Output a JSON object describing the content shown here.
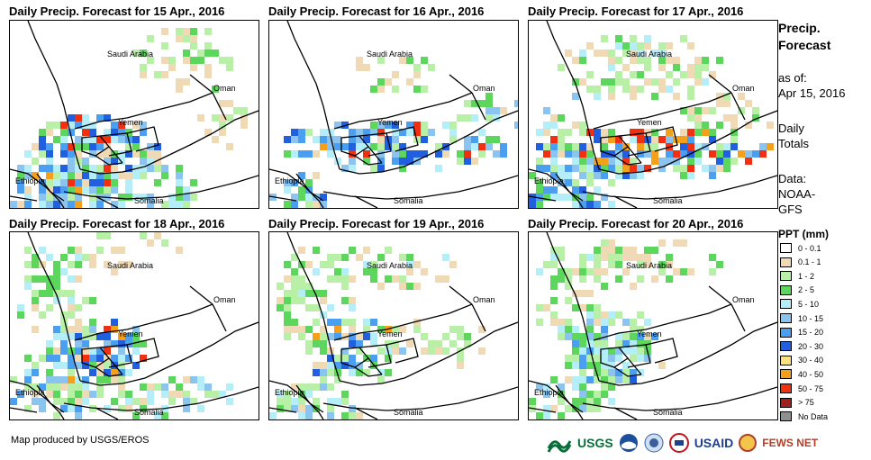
{
  "panels": [
    {
      "title": "Daily Precip. Forecast for 15 Apr., 2016"
    },
    {
      "title": "Daily Precip. Forecast for 16 Apr., 2016"
    },
    {
      "title": "Daily Precip. Forecast for 17 Apr., 2016"
    },
    {
      "title": "Daily Precip. Forecast for 18 Apr., 2016"
    },
    {
      "title": "Daily Precip. Forecast for 19 Apr., 2016"
    },
    {
      "title": "Daily Precip. Forecast for 20 Apr., 2016"
    }
  ],
  "map_labels": {
    "saudi": "Saudi Arabia",
    "oman": "Oman",
    "yemen": "Yemen",
    "ethiopia": "Ethiopia",
    "somalia": "Somalia"
  },
  "sidebar": {
    "title_line1": "Precip.",
    "title_line2": "Forecast",
    "asof_line1": "as of:",
    "asof_line2": "Apr 15, 2016",
    "totals_line1": "Daily",
    "totals_line2": "Totals",
    "data_line1": "Data:",
    "data_line2": "NOAA-",
    "data_line3": "GFS"
  },
  "legend": {
    "title": "PPT (mm)",
    "items": [
      {
        "label": "0 - 0.1",
        "color": "#ffffff"
      },
      {
        "label": "0.1 - 1",
        "color": "#f0d9b5"
      },
      {
        "label": "1 - 2",
        "color": "#b8f0a8"
      },
      {
        "label": "2 - 5",
        "color": "#5cd65c"
      },
      {
        "label": "5 - 10",
        "color": "#b4eef8"
      },
      {
        "label": "10 - 15",
        "color": "#8cc4f0"
      },
      {
        "label": "15 - 20",
        "color": "#4a9ff0"
      },
      {
        "label": "20 - 30",
        "color": "#1f5fe0"
      },
      {
        "label": "30 - 40",
        "color": "#fbe382"
      },
      {
        "label": "40 - 50",
        "color": "#f5a01a"
      },
      {
        "label": "50 - 75",
        "color": "#f03010"
      },
      {
        "label": "> 75",
        "color": "#a02020"
      },
      {
        "label": "No Data",
        "color": "#909090"
      }
    ]
  },
  "footer": {
    "credit": "Map produced by USGS/EROS"
  },
  "logos": {
    "usgs": "USGS",
    "usaid": "USAID",
    "fews": "FEWS NET"
  }
}
